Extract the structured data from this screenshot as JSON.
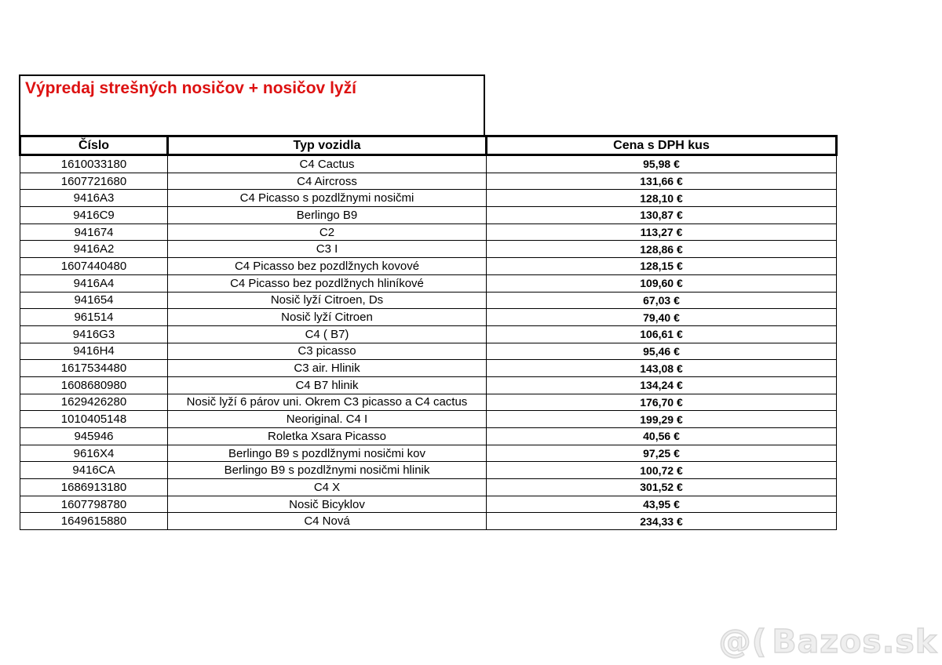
{
  "title": {
    "text": "Výpredaj strešných nosičov + nosičov lyží",
    "color": "#dd1111"
  },
  "table": {
    "headers": [
      {
        "label": "Číslo"
      },
      {
        "label": "Typ vozidla"
      },
      {
        "label": "Cena s DPH kus"
      }
    ],
    "rows": [
      {
        "number": "1610033180",
        "vehicle": "C4 Cactus",
        "price": "95,98 €"
      },
      {
        "number": "1607721680",
        "vehicle": "C4 Aircross",
        "price": "131,66 €"
      },
      {
        "number": "9416A3",
        "vehicle": "C4 Picasso s pozdlžnymi nosičmi",
        "price": "128,10 €"
      },
      {
        "number": "9416C9",
        "vehicle": "Berlingo B9",
        "price": "130,87 €"
      },
      {
        "number": "941674",
        "vehicle": "C2",
        "price": "113,27 €"
      },
      {
        "number": "9416A2",
        "vehicle": "C3 I",
        "price": "128,86 €"
      },
      {
        "number": "1607440480",
        "vehicle": "C4 Picasso bez pozdlžnych kovové",
        "price": "128,15 €"
      },
      {
        "number": "9416A4",
        "vehicle": "C4 Picasso bez pozdlžnych hliníkové",
        "price": "109,60 €"
      },
      {
        "number": "941654",
        "vehicle": "Nosič lyží Citroen, Ds",
        "price": "67,03 €"
      },
      {
        "number": "961514",
        "vehicle": "Nosič lyží Citroen",
        "price": "79,40 €"
      },
      {
        "number": "9416G3",
        "vehicle": "C4 ( B7)",
        "price": "106,61 €"
      },
      {
        "number": "9416H4",
        "vehicle": "C3 picasso",
        "price": "95,46 €"
      },
      {
        "number": "1617534480",
        "vehicle": "C3 air. Hlinik",
        "price": "143,08 €"
      },
      {
        "number": "1608680980",
        "vehicle": "C4 B7 hlinik",
        "price": "134,24 €"
      },
      {
        "number": "1629426280",
        "vehicle": "Nosič lyží 6 párov uni. Okrem C3 picasso a C4 cactus",
        "price": "176,70 €"
      },
      {
        "number": "1010405148",
        "vehicle": "Neoriginal. C4 I",
        "price": "199,29 €"
      },
      {
        "number": "945946",
        "vehicle": "Roletka  Xsara Picasso",
        "price": "40,56 €"
      },
      {
        "number": "9616X4",
        "vehicle": "Berlingo B9 s pozdlžnymi nosičmi kov",
        "price": "97,25 €"
      },
      {
        "number": "9416CA",
        "vehicle": "Berlingo B9 s pozdlžnymi nosičmi  hlinik",
        "price": "100,72 €"
      },
      {
        "number": "1686913180",
        "vehicle": "C4 X",
        "price": "301,52 €"
      },
      {
        "number": "1607798780",
        "vehicle": "Nosič Bicyklov",
        "price": "43,95 €"
      },
      {
        "number": "1649615880",
        "vehicle": "C4 Nová",
        "price": "234,33 €"
      }
    ]
  },
  "watermark": {
    "prefix": "@(",
    "text": "Bazos.sk"
  }
}
